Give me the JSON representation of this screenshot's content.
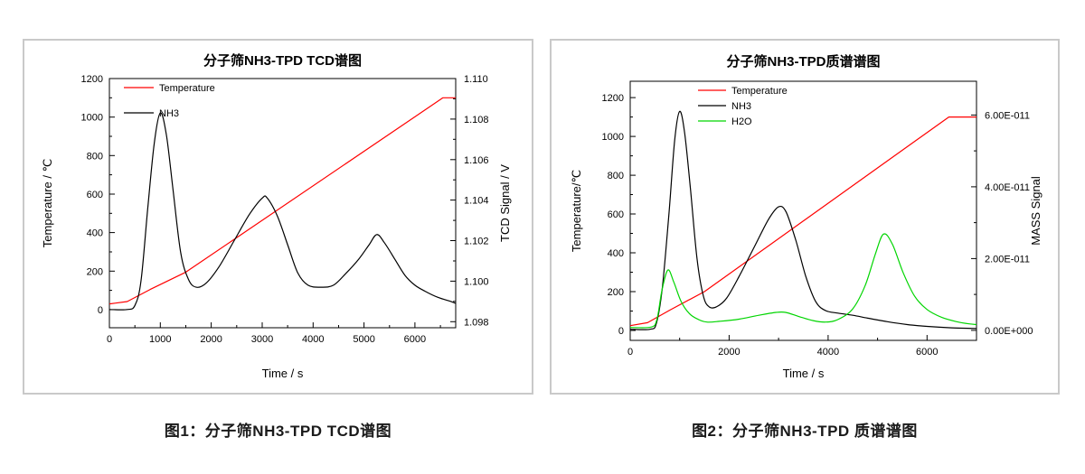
{
  "page": {
    "background": "#ffffff"
  },
  "figure1": {
    "caption": "图1：分子筛NH3-TPD TCD谱图"
  },
  "figure2": {
    "caption": "图2：分子筛NH3-TPD 质谱谱图"
  },
  "chart_data": [
    {
      "type": "line",
      "title": "分子筛NH3-TPD TCD谱图",
      "xlabel": "Time / s",
      "ylabel_left": "Temperature / ℃",
      "ylabel_right": "TCD Signal / V",
      "x_range": [
        0,
        6800
      ],
      "x_ticks": [
        0,
        1000,
        2000,
        3000,
        4000,
        5000,
        6000
      ],
      "x_minor_step": 500,
      "y_left_range": [
        -94,
        1200
      ],
      "y_left_ticks": [
        0,
        200,
        400,
        600,
        800,
        1000,
        1200
      ],
      "y_left_minor_step": 100,
      "y_right_range": [
        1.0977,
        1.11
      ],
      "y_right_ticks": [
        1.098,
        1.1,
        1.102,
        1.104,
        1.106,
        1.108,
        1.11
      ],
      "y_right_tick_labels": [
        "1.098",
        "1.100",
        "1.102",
        "1.104",
        "1.106",
        "1.108",
        "1.110"
      ],
      "y_right_minor_step": 0.001,
      "grid": false,
      "legend_position": "top-left-inside",
      "legend": [
        {
          "label": "Temperature",
          "color": "#ff0000"
        },
        {
          "label": "NH3",
          "color": "#000000"
        }
      ],
      "series": [
        {
          "name": "Temperature",
          "axis": "left",
          "color": "#ff0000",
          "smooth": false,
          "points": [
            [
              0,
              30
            ],
            [
              350,
              42
            ],
            [
              800,
              105
            ],
            [
              1500,
              195
            ],
            [
              6550,
              1100
            ],
            [
              6800,
              1100
            ]
          ]
        },
        {
          "name": "NH3",
          "axis": "right",
          "color": "#000000",
          "smooth": true,
          "points": [
            [
              0,
              1.0986
            ],
            [
              350,
              1.0986
            ],
            [
              500,
              1.0988
            ],
            [
              620,
              1.1
            ],
            [
              750,
              1.1035
            ],
            [
              880,
              1.1068
            ],
            [
              1000,
              1.1083
            ],
            [
              1120,
              1.1072
            ],
            [
              1250,
              1.1045
            ],
            [
              1400,
              1.1014
            ],
            [
              1550,
              1.1001
            ],
            [
              1700,
              1.0997
            ],
            [
              1900,
              1.0999
            ],
            [
              2150,
              1.1007
            ],
            [
              2450,
              1.102
            ],
            [
              2750,
              1.1033
            ],
            [
              3000,
              1.1041
            ],
            [
              3100,
              1.1041
            ],
            [
              3300,
              1.1032
            ],
            [
              3500,
              1.1018
            ],
            [
              3700,
              1.1004
            ],
            [
              3900,
              1.0998
            ],
            [
              4150,
              1.0997
            ],
            [
              4400,
              1.0998
            ],
            [
              4650,
              1.1004
            ],
            [
              4900,
              1.1011
            ],
            [
              5100,
              1.1018
            ],
            [
              5250,
              1.1023
            ],
            [
              5400,
              1.1019
            ],
            [
              5600,
              1.1011
            ],
            [
              5800,
              1.1003
            ],
            [
              6000,
              1.0998
            ],
            [
              6200,
              1.0995
            ],
            [
              6450,
              1.0992
            ],
            [
              6700,
              1.099
            ],
            [
              6800,
              1.0989
            ]
          ]
        }
      ]
    },
    {
      "type": "line",
      "title": "分子筛NH3-TPD质谱谱图",
      "xlabel": "Time / s",
      "ylabel_left": "Temperature/℃",
      "ylabel_right": "MASS Signal",
      "x_range": [
        0,
        7000
      ],
      "x_ticks": [
        0,
        2000,
        4000,
        6000
      ],
      "x_minor_step": 1000,
      "y_left_range": [
        -51,
        1284
      ],
      "y_left_ticks": [
        0,
        200,
        400,
        600,
        800,
        1000,
        1200
      ],
      "y_left_minor_step": 100,
      "y_right_range": [
        -2.8e-12,
        6.94e-11
      ],
      "y_right_ticks": [
        0,
        2e-11,
        4e-11,
        6e-11
      ],
      "y_right_tick_labels": [
        "0.00E+000",
        "2.00E-011",
        "4.00E-011",
        "6.00E-011"
      ],
      "y_right_minor_step": 1e-11,
      "grid": false,
      "legend_position": "top-left-inside",
      "legend": [
        {
          "label": "Temperature",
          "color": "#ff0000"
        },
        {
          "label": "NH3",
          "color": "#000000"
        },
        {
          "label": "H2O",
          "color": "#00d500"
        }
      ],
      "series": [
        {
          "name": "Temperature",
          "axis": "left",
          "color": "#ff0000",
          "smooth": false,
          "points": [
            [
              0,
              25
            ],
            [
              350,
              40
            ],
            [
              800,
              105
            ],
            [
              1500,
              200
            ],
            [
              6440,
              1100
            ],
            [
              7000,
              1100
            ]
          ]
        },
        {
          "name": "NH3",
          "axis": "right",
          "color": "#000000",
          "smooth": true,
          "points": [
            [
              0,
              3e-13
            ],
            [
              400,
              3e-13
            ],
            [
              530,
              2e-12
            ],
            [
              650,
              1.2e-11
            ],
            [
              780,
              3.2e-11
            ],
            [
              900,
              5.3e-11
            ],
            [
              1000,
              6.1e-11
            ],
            [
              1100,
              5.5e-11
            ],
            [
              1220,
              3.9e-11
            ],
            [
              1350,
              2e-11
            ],
            [
              1480,
              9.5e-12
            ],
            [
              1600,
              6.5e-12
            ],
            [
              1750,
              6.6e-12
            ],
            [
              1950,
              9e-12
            ],
            [
              2200,
              1.5e-11
            ],
            [
              2500,
              2.3e-11
            ],
            [
              2800,
              3.1e-11
            ],
            [
              3000,
              3.44e-11
            ],
            [
              3150,
              3.3e-11
            ],
            [
              3350,
              2.5e-11
            ],
            [
              3550,
              1.5e-11
            ],
            [
              3750,
              8e-12
            ],
            [
              3950,
              5.5e-12
            ],
            [
              4200,
              4.8e-12
            ],
            [
              4500,
              4.2e-12
            ],
            [
              4800,
              3.4e-12
            ],
            [
              5200,
              2.4e-12
            ],
            [
              5600,
              1.6e-12
            ],
            [
              6000,
              1.1e-12
            ],
            [
              6500,
              7e-13
            ],
            [
              7000,
              5e-13
            ]
          ]
        },
        {
          "name": "H2O",
          "axis": "right",
          "color": "#00d500",
          "smooth": true,
          "points": [
            [
              0,
              8e-13
            ],
            [
              420,
              9e-13
            ],
            [
              540,
              3e-12
            ],
            [
              640,
              1.1e-11
            ],
            [
              760,
              1.68e-11
            ],
            [
              880,
              1.35e-11
            ],
            [
              1030,
              8e-12
            ],
            [
              1200,
              4.6e-12
            ],
            [
              1380,
              3e-12
            ],
            [
              1550,
              2.3e-12
            ],
            [
              1800,
              2.5e-12
            ],
            [
              2200,
              3.1e-12
            ],
            [
              2600,
              4.2e-12
            ],
            [
              2950,
              5e-12
            ],
            [
              3140,
              5e-12
            ],
            [
              3400,
              3.9e-12
            ],
            [
              3700,
              2.7e-12
            ],
            [
              3950,
              2.3e-12
            ],
            [
              4200,
              3e-12
            ],
            [
              4500,
              6e-12
            ],
            [
              4750,
              1.25e-11
            ],
            [
              4950,
              2.1e-11
            ],
            [
              5120,
              2.68e-11
            ],
            [
              5300,
              2.4e-11
            ],
            [
              5520,
              1.6e-11
            ],
            [
              5750,
              9.5e-12
            ],
            [
              6000,
              5.8e-12
            ],
            [
              6300,
              3.6e-12
            ],
            [
              6600,
              2.4e-12
            ],
            [
              6850,
              1.8e-12
            ],
            [
              7000,
              1.6e-12
            ]
          ]
        }
      ]
    }
  ]
}
